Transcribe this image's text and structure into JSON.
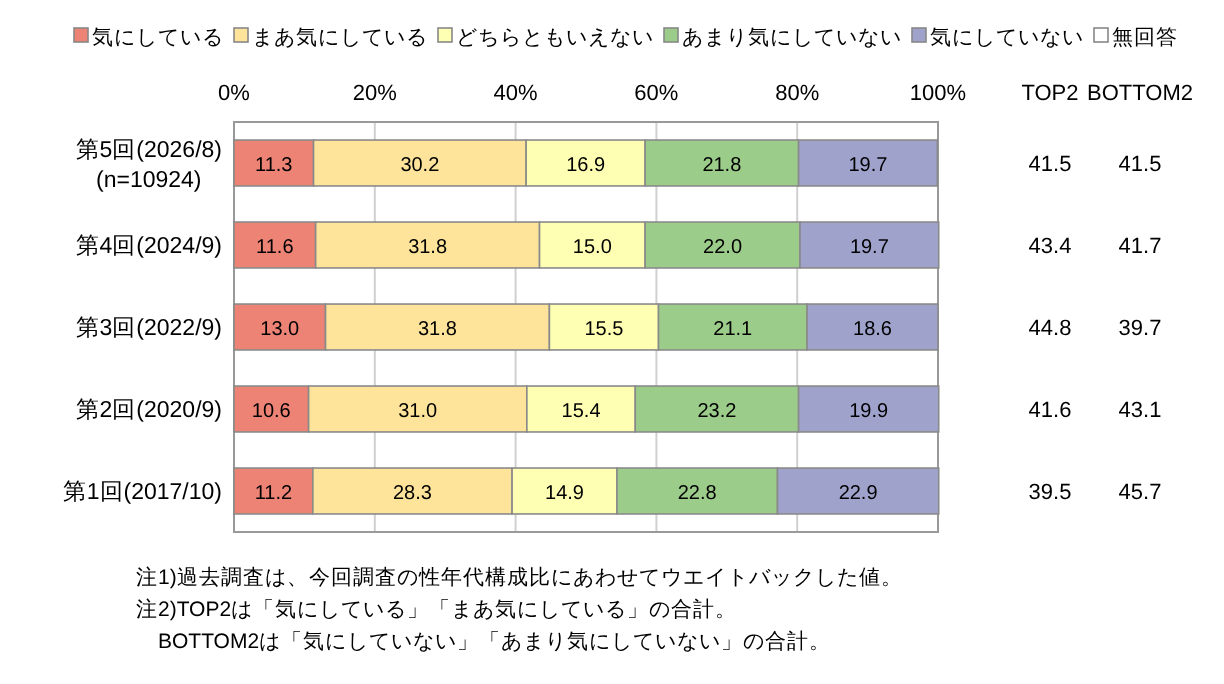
{
  "chart_data": [
    {
      "type": "bar",
      "orientation": "horizontal",
      "stacked": true,
      "categories": [
        "第5回(2026/8)\n(n=10924)",
        "第4回(2024/9)",
        "第3回(2022/9)",
        "第2回(2020/9)",
        "第1回(2017/10)"
      ],
      "series": [
        {
          "name": "気にしている",
          "color": "#ec8375",
          "values": [
            11.3,
            11.6,
            13.0,
            10.6,
            11.2
          ],
          "value_labels": [
            "11.3",
            "11.6",
            "13.0",
            "10.6",
            "11.2"
          ]
        },
        {
          "name": "まあ気にしている",
          "color": "#fde49a",
          "values": [
            30.2,
            31.8,
            31.8,
            31.0,
            28.3
          ],
          "value_labels": [
            "30.2",
            "31.8",
            "31.8",
            "31.0",
            "28.3"
          ]
        },
        {
          "name": "どちらともいえない",
          "color": "#ffffb3",
          "values": [
            16.9,
            15.0,
            15.5,
            15.4,
            14.9
          ],
          "value_labels": [
            "16.9",
            "15.0",
            "15.5",
            "15.4",
            "14.9"
          ]
        },
        {
          "name": "あまり気にしていない",
          "color": "#9ccc8a",
          "values": [
            21.8,
            22.0,
            21.1,
            23.2,
            22.8
          ],
          "value_labels": [
            "21.8",
            "22.0",
            "21.1",
            "23.2",
            "22.8"
          ]
        },
        {
          "name": "気にしていない",
          "color": "#9fa3cc",
          "values": [
            19.7,
            19.7,
            18.6,
            19.9,
            22.9
          ],
          "value_labels": [
            "19.7",
            "19.7",
            "18.6",
            "19.9",
            "22.9"
          ]
        },
        {
          "name": "無回答",
          "color": "#ffffff",
          "values": [
            null,
            null,
            null,
            null,
            null
          ]
        }
      ],
      "xlim": [
        0,
        100
      ],
      "xticks": [
        {
          "value": 0,
          "label": "0%"
        },
        {
          "value": 20,
          "label": "20%"
        },
        {
          "value": 40,
          "label": "40%"
        },
        {
          "value": 60,
          "label": "60%"
        },
        {
          "value": 80,
          "label": "80%"
        },
        {
          "value": 100,
          "label": "100%"
        }
      ],
      "grid": "x",
      "legend": "top",
      "annotations": [
        "注1)過去調査は、今回調査の性年代構成比にあわせてウエイトバックした値。",
        "注2)TOP2は「気にしている」「まあ気にしている」の合計。",
        "　BOTTOM2は「気にしていない」「あまり気にしていない」の合計。"
      ]
    },
    {
      "type": "other",
      "categories": [
        "TOP2",
        "BOTTOM2"
      ],
      "data_labels": true,
      "series": [
        {
          "values": [
            41.5,
            41.5
          ]
        },
        {
          "values": [
            43.4,
            41.7
          ]
        },
        {
          "values": [
            44.8,
            39.7
          ]
        },
        {
          "values": [
            41.6,
            43.1
          ]
        },
        {
          "values": [
            39.5,
            45.7
          ]
        }
      ]
    }
  ]
}
